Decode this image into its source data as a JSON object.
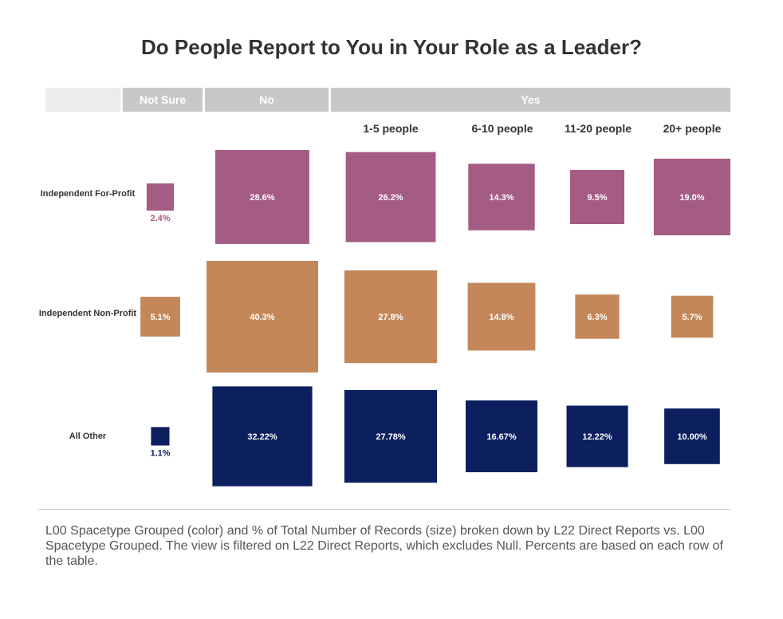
{
  "title": "Do People Report to You in Your Role as a Leader?",
  "headers": {
    "not_sure": "Not Sure",
    "no": "No",
    "yes": "Yes"
  },
  "subheaders": [
    "1-5 people",
    "6-10 people",
    "11-20 people",
    "20+ people"
  ],
  "caption": "L00 Spacetype Grouped (color) and % of Total Number of Records (size) broken down by L22 Direct Reports vs. L00 Spacetype Grouped. The view is filtered on L22 Direct Reports, which excludes Null. Percents are based on each row of the table.",
  "chart_data": {
    "type": "heatmap",
    "columns": [
      "Not Sure",
      "No",
      "1-5 people",
      "6-10 people",
      "11-20 people",
      "20+ people"
    ],
    "rows": [
      {
        "name": "Independent For-Profit",
        "color": "#a45c84",
        "values": [
          2.4,
          28.6,
          26.2,
          14.3,
          9.5,
          19.0
        ],
        "labels": [
          "2.4%",
          "28.6%",
          "26.2%",
          "14.3%",
          "9.5%",
          "19.0%"
        ]
      },
      {
        "name": "Independent Non-Profit",
        "color": "#c4875a",
        "values": [
          5.1,
          40.3,
          27.8,
          14.8,
          6.3,
          5.7
        ],
        "labels": [
          "5.1%",
          "40.3%",
          "27.8%",
          "14.8%",
          "6.3%",
          "5.7%"
        ]
      },
      {
        "name": "All Other",
        "color": "#0c1f5e",
        "values": [
          1.1,
          32.22,
          27.78,
          16.67,
          12.22,
          10.0
        ],
        "labels": [
          "1.1%",
          "32.22%",
          "27.78%",
          "16.67%",
          "12.22%",
          "10.00%"
        ]
      }
    ]
  }
}
